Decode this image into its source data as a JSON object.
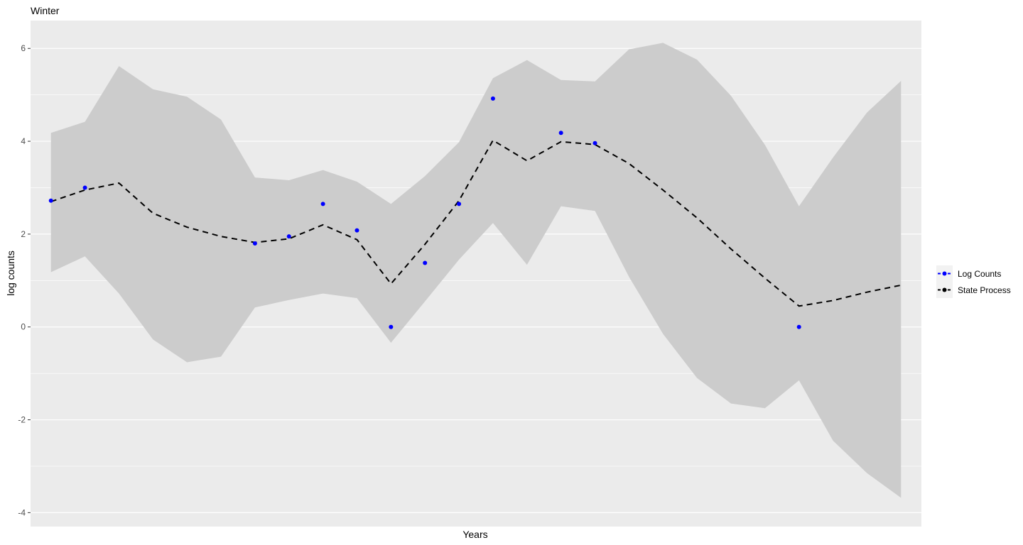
{
  "chart_data": {
    "type": "line",
    "title": "Winter",
    "xlabel": "Years",
    "ylabel": "log counts",
    "ylim": [
      -4.3,
      6.6
    ],
    "yticks": [
      -4,
      -2,
      0,
      2,
      4,
      6
    ],
    "x": [
      1,
      2,
      3,
      4,
      5,
      6,
      7,
      8,
      9,
      10,
      11,
      12,
      13,
      14,
      15,
      16,
      17,
      18,
      19,
      20,
      21,
      22,
      23,
      24,
      25,
      26
    ],
    "xlim": [
      0.4,
      26.6
    ],
    "grid": true,
    "legend_position": "right",
    "series": [
      {
        "name": "Log Counts",
        "kind": "points",
        "color": "#0000ff",
        "values": [
          2.72,
          3.0,
          null,
          null,
          null,
          null,
          1.8,
          1.95,
          2.65,
          2.08,
          0.0,
          1.38,
          2.65,
          4.92,
          null,
          4.18,
          3.96,
          null,
          null,
          null,
          null,
          null,
          0.0,
          null,
          null,
          null
        ]
      },
      {
        "name": "State Process",
        "kind": "dashed-line",
        "color": "#000000",
        "values": [
          2.7,
          2.95,
          3.1,
          2.45,
          2.15,
          1.95,
          1.82,
          1.9,
          2.2,
          1.88,
          0.93,
          1.78,
          2.72,
          4.02,
          3.58,
          3.99,
          3.93,
          3.52,
          2.95,
          2.35,
          1.68,
          1.05,
          0.45,
          0.57,
          0.75,
          0.9
        ]
      },
      {
        "name": "interval",
        "kind": "ribbon",
        "color": "#cccccc",
        "upper": [
          4.18,
          4.42,
          5.62,
          5.12,
          4.96,
          4.47,
          3.22,
          3.16,
          3.38,
          3.13,
          2.65,
          3.25,
          3.98,
          5.36,
          5.75,
          5.32,
          5.29,
          5.98,
          6.12,
          5.76,
          4.98,
          3.92,
          2.6,
          3.65,
          4.62,
          5.3
        ],
        "lower": [
          1.18,
          1.52,
          0.72,
          -0.27,
          -0.76,
          -0.64,
          0.42,
          0.58,
          0.72,
          0.62,
          -0.34,
          0.55,
          1.45,
          2.24,
          1.34,
          2.6,
          2.5,
          1.08,
          -0.15,
          -1.1,
          -1.65,
          -1.75,
          -1.15,
          -2.45,
          -3.15,
          -3.68
        ]
      }
    ]
  }
}
